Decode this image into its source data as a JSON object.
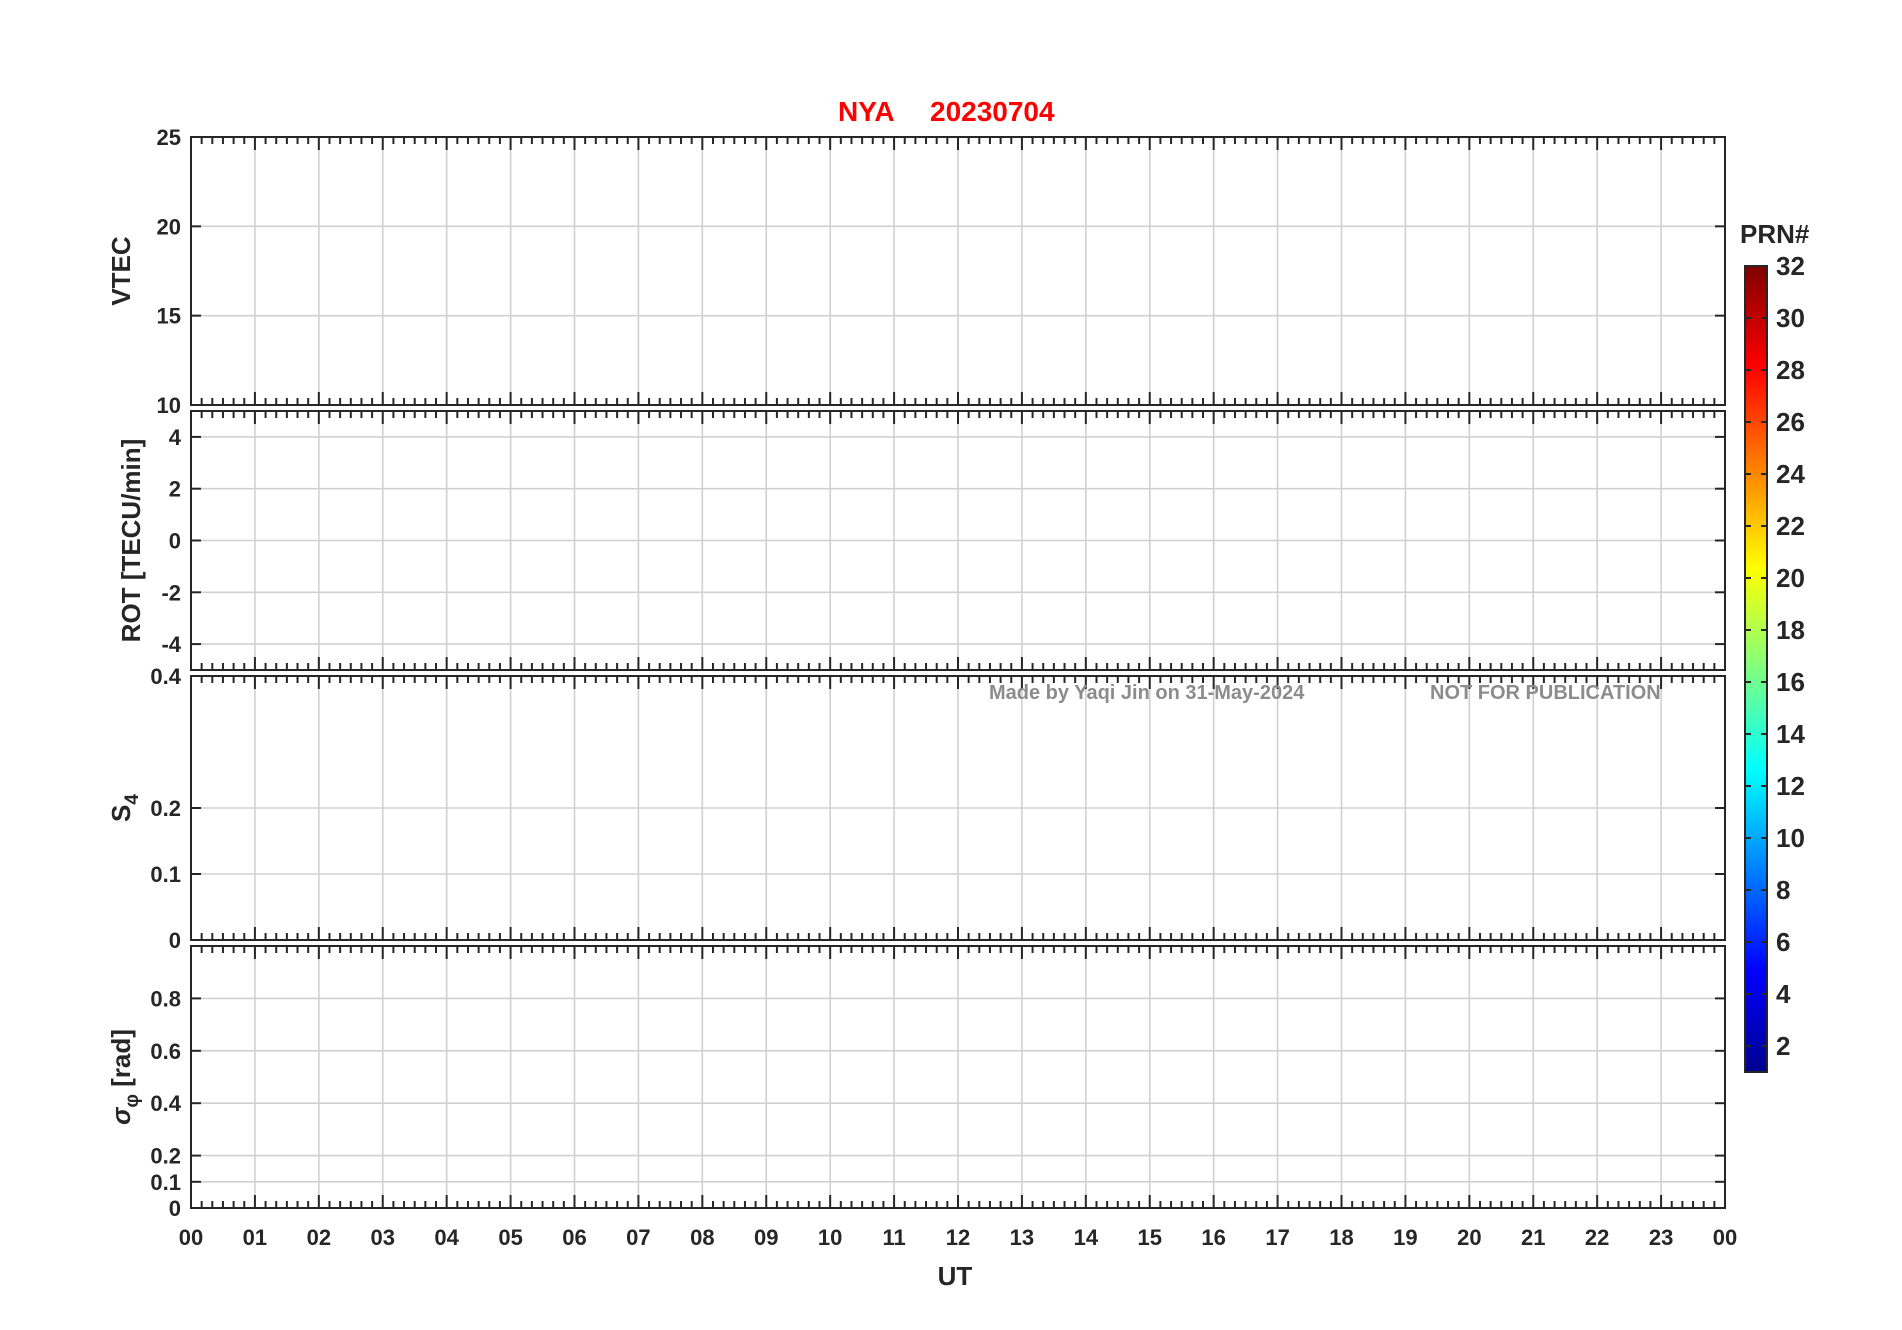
{
  "figure": {
    "title_station": "NYA",
    "title_date": "20230704",
    "watermark_author": "Made by Yaqi Jin on 31-May-2024",
    "watermark_notice": "NOT FOR PUBLICATION",
    "xlabel": "UT",
    "colorbar_label": "PRN#"
  },
  "chart_data": [
    {
      "type": "line",
      "panel": "VTEC",
      "ylabel": "VTEC",
      "ylim": [
        10,
        25
      ],
      "yticks": [
        10,
        15,
        20,
        25
      ],
      "xlim": [
        0,
        24
      ],
      "grid": true
    },
    {
      "type": "line",
      "panel": "ROT",
      "ylabel": "ROT [TECU/min]",
      "ylim": [
        -5,
        5
      ],
      "yticks": [
        -4,
        -2,
        0,
        2,
        4
      ],
      "xlim": [
        0,
        24
      ],
      "grid": true
    },
    {
      "type": "line",
      "panel": "S4",
      "ylabel": "S",
      "ylabel_sub": "4",
      "ylim": [
        0,
        0.4
      ],
      "yticks": [
        0,
        0.1,
        0.2,
        0.4
      ],
      "xlim": [
        0,
        24
      ],
      "grid": true
    },
    {
      "type": "line",
      "panel": "sigma_phi",
      "ylabel": "σ",
      "ylabel_sub": "φ",
      "ylabel_unit": "[rad]",
      "ylim": [
        0,
        1
      ],
      "yticks": [
        0,
        0.1,
        0.2,
        0.4,
        0.6,
        0.8
      ],
      "xlim": [
        0,
        24
      ],
      "grid": true
    }
  ],
  "xticks": [
    "00",
    "01",
    "02",
    "03",
    "04",
    "05",
    "06",
    "07",
    "08",
    "09",
    "10",
    "11",
    "12",
    "13",
    "14",
    "15",
    "16",
    "17",
    "18",
    "19",
    "20",
    "21",
    "22",
    "23",
    "00"
  ],
  "colorbar": {
    "range": [
      1,
      32
    ],
    "ticks": [
      "2",
      "4",
      "6",
      "8",
      "10",
      "12",
      "14",
      "16",
      "18",
      "20",
      "22",
      "24",
      "26",
      "28",
      "30",
      "32"
    ],
    "colormap": "jet"
  },
  "colors": {
    "title": "#ff0000",
    "watermark": "#8c8c8c",
    "axes": "#262626"
  }
}
